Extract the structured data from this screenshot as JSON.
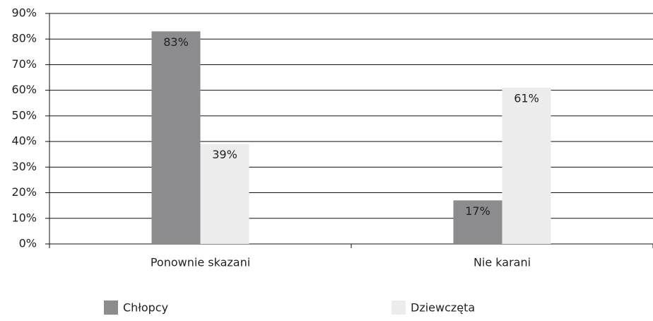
{
  "chart_data": {
    "type": "bar",
    "categories": [
      "Ponownie skazani",
      "Nie karani"
    ],
    "series": [
      {
        "name": "Chłopcy",
        "color": "#8c8c8e",
        "values": [
          83,
          17
        ],
        "value_labels": [
          "83%",
          "17%"
        ]
      },
      {
        "name": "Dziewczęta",
        "color": "#ececec",
        "values": [
          39,
          61
        ],
        "value_labels": [
          "39%",
          "61%"
        ]
      }
    ],
    "ylim": [
      0,
      90
    ],
    "yticks": [
      {
        "value": 0,
        "label": "0%"
      },
      {
        "value": 10,
        "label": "10%"
      },
      {
        "value": 20,
        "label": "20%"
      },
      {
        "value": 30,
        "label": "30%"
      },
      {
        "value": 40,
        "label": "40%"
      },
      {
        "value": 50,
        "label": "50%"
      },
      {
        "value": 60,
        "label": "60%"
      },
      {
        "value": 70,
        "label": "70%"
      },
      {
        "value": 80,
        "label": "80%"
      },
      {
        "value": 90,
        "label": "90%"
      }
    ],
    "grid": true,
    "legend": "bottom"
  }
}
